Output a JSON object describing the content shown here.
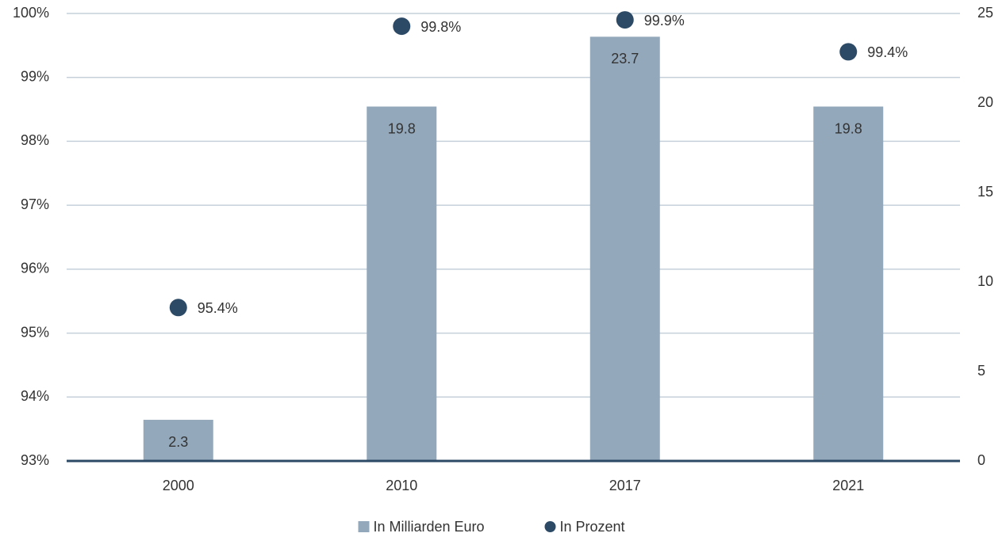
{
  "chart_data": {
    "type": "bar",
    "categories": [
      "2000",
      "2010",
      "2017",
      "2021"
    ],
    "series": [
      {
        "name": "In Milliarden Euro",
        "color": "#94a8bb",
        "axis": "y2",
        "values": [
          2.3,
          19.8,
          23.7,
          19.8
        ]
      },
      {
        "name": "In Prozent",
        "color": "#2c4a66",
        "type": "scatter",
        "values": [
          95.4,
          99.8,
          99.9,
          99.4
        ],
        "value_labels": [
          "95.4%",
          "99.8%",
          "99.9%",
          "99.4%"
        ]
      }
    ],
    "ylim": [
      93,
      100
    ],
    "yticks": [
      {
        "value": 93,
        "label": "93%"
      },
      {
        "value": 94,
        "label": "94%"
      },
      {
        "value": 95,
        "label": "95%"
      },
      {
        "value": 96,
        "label": "96%"
      },
      {
        "value": 97,
        "label": "97%"
      },
      {
        "value": 98,
        "label": "98%"
      },
      {
        "value": 99,
        "label": "99%"
      },
      {
        "value": 100,
        "label": "100%"
      }
    ],
    "y2lim": [
      0,
      25
    ],
    "y2ticks": [
      0,
      5,
      10,
      15,
      20,
      25
    ],
    "grid": true,
    "legend": "bottom"
  }
}
